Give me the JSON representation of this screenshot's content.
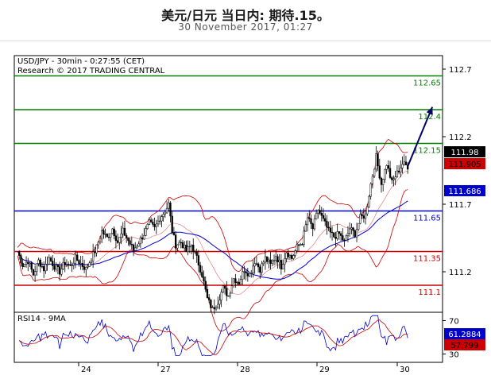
{
  "header": {
    "title": "美元/日元 当日内: 期待.15。",
    "subtitle": "30 November 2017, 01:27"
  },
  "chart_data": {
    "type": "candlestick",
    "info_line1": "USD/JPY - 30min - 0:27:55 (CET)",
    "info_line2": "Research © 2017 TRADING CENTRAL",
    "y_ticks": [
      "112.7",
      "112.2",
      "111.7",
      "111.2"
    ],
    "ylim": [
      110.9,
      112.8
    ],
    "x_ticks": [
      "24",
      "27",
      "28",
      "29",
      "30"
    ],
    "levels": [
      {
        "label": "112.65",
        "value": 112.65,
        "color": "#008000"
      },
      {
        "label": "112.4",
        "value": 112.4,
        "color": "#008000"
      },
      {
        "label": "112.15",
        "value": 112.15,
        "color": "#008000"
      },
      {
        "label": "111.65",
        "value": 111.65,
        "color": "#0000cc"
      },
      {
        "label": "111.35",
        "value": 111.35,
        "color": "#cc0000"
      },
      {
        "label": "111.1",
        "value": 111.1,
        "color": "#cc0000"
      }
    ],
    "price_flags": [
      {
        "label": "111.98",
        "value": 111.98,
        "bg": "#000000",
        "fg": "#ffffff"
      },
      {
        "label": "111.905",
        "value": 111.905,
        "bg": "#cc0000",
        "fg": "#000000"
      },
      {
        "label": "111.686",
        "value": 111.686,
        "bg": "#0000cc",
        "fg": "#ffffff"
      }
    ],
    "close_path": [
      [
        0,
        111.35
      ],
      [
        3,
        111.25
      ],
      [
        6,
        111.28
      ],
      [
        9,
        111.18
      ],
      [
        12,
        111.28
      ],
      [
        15,
        111.22
      ],
      [
        18,
        111.3
      ],
      [
        21,
        111.24
      ],
      [
        24,
        111.2
      ],
      [
        27,
        111.27
      ],
      [
        30,
        111.24
      ],
      [
        33,
        111.3
      ],
      [
        36,
        111.26
      ],
      [
        39,
        111.22
      ],
      [
        42,
        111.3
      ],
      [
        45,
        111.38
      ],
      [
        48,
        111.5
      ],
      [
        51,
        111.45
      ],
      [
        54,
        111.52
      ],
      [
        57,
        111.42
      ],
      [
        60,
        111.5
      ],
      [
        63,
        111.43
      ],
      [
        66,
        111.36
      ],
      [
        69,
        111.42
      ],
      [
        72,
        111.48
      ],
      [
        75,
        111.56
      ],
      [
        78,
        111.52
      ],
      [
        81,
        111.6
      ],
      [
        84,
        111.65
      ],
      [
        86,
        111.7
      ],
      [
        88,
        111.5
      ],
      [
        90,
        111.4
      ],
      [
        93,
        111.42
      ],
      [
        96,
        111.35
      ],
      [
        99,
        111.4
      ],
      [
        102,
        111.3
      ],
      [
        105,
        111.18
      ],
      [
        108,
        111.0
      ],
      [
        111,
        110.92
      ],
      [
        114,
        110.98
      ],
      [
        117,
        111.08
      ],
      [
        120,
        111.02
      ],
      [
        123,
        111.15
      ],
      [
        126,
        111.12
      ],
      [
        129,
        111.22
      ],
      [
        132,
        111.18
      ],
      [
        135,
        111.28
      ],
      [
        138,
        111.22
      ],
      [
        141,
        111.3
      ],
      [
        144,
        111.25
      ],
      [
        147,
        111.32
      ],
      [
        150,
        111.24
      ],
      [
        153,
        111.35
      ],
      [
        156,
        111.3
      ],
      [
        159,
        111.38
      ],
      [
        162,
        111.42
      ],
      [
        165,
        111.6
      ],
      [
        168,
        111.52
      ],
      [
        171,
        111.66
      ],
      [
        174,
        111.58
      ],
      [
        177,
        111.5
      ],
      [
        180,
        111.46
      ],
      [
        183,
        111.48
      ],
      [
        186,
        111.42
      ],
      [
        189,
        111.52
      ],
      [
        192,
        111.48
      ],
      [
        195,
        111.6
      ],
      [
        198,
        111.62
      ],
      [
        201,
        111.85
      ],
      [
        204,
        112.05
      ],
      [
        207,
        111.85
      ],
      [
        210,
        112.0
      ],
      [
        213,
        111.86
      ],
      [
        216,
        111.93
      ],
      [
        219,
        112.0
      ],
      [
        222,
        111.98
      ]
    ],
    "rsi": {
      "label": "RSI14 - 9MA",
      "y_ticks": [
        "70",
        "30"
      ],
      "ylim": [
        20,
        80
      ],
      "flags": [
        {
          "label": "61.2884",
          "value": 61.2884,
          "bg": "#0000cc",
          "fg": "#ffffff"
        },
        {
          "label": "57.799",
          "value": 57.799,
          "bg": "#cc0000",
          "fg": "#000000"
        }
      ]
    },
    "projection": {
      "from": [
        222,
        111.98
      ],
      "to": [
        236,
        112.42
      ]
    }
  }
}
